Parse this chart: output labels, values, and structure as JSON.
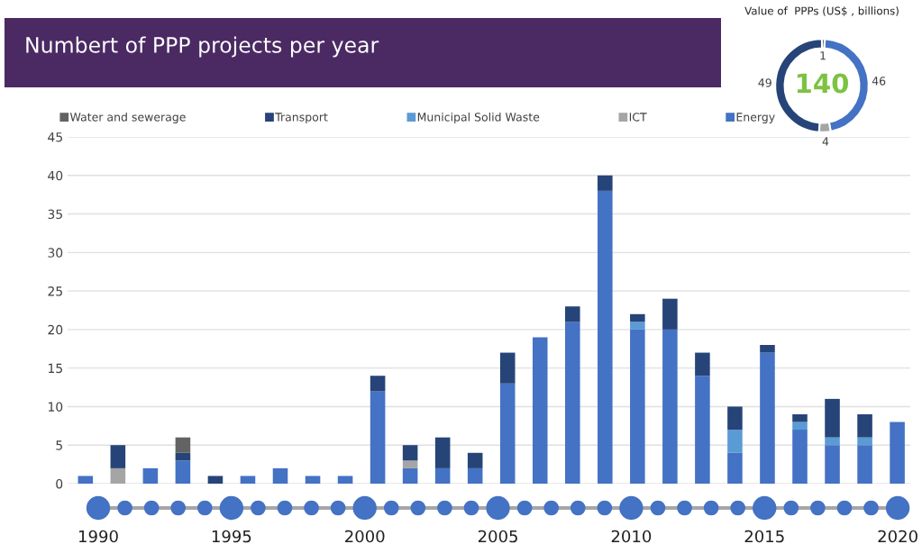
{
  "chart_data": [
    {
      "type": "bar",
      "title": "Numbert of PPP projects per year",
      "stacked": true,
      "legend": "top",
      "grid": "y",
      "categories": [
        null,
        null,
        null,
        null,
        null,
        null,
        null,
        null,
        null,
        null,
        null,
        null,
        null,
        null,
        null,
        null,
        null,
        null,
        null,
        null,
        null,
        null,
        null,
        null,
        null,
        null
      ],
      "series": [
        {
          "name": "Energy",
          "color": "#4472c4",
          "values": [
            1,
            0,
            2,
            3,
            0,
            1,
            2,
            1,
            1,
            12,
            2,
            2,
            2,
            13,
            19,
            21,
            38,
            20,
            20,
            14,
            4,
            17,
            7,
            5,
            5,
            8
          ]
        },
        {
          "name": "ICT",
          "color": "#a5a5a5",
          "values": [
            0,
            2,
            0,
            0,
            0,
            0,
            0,
            0,
            0,
            0,
            1,
            0,
            0,
            0,
            0,
            0,
            0,
            0,
            0,
            0,
            0,
            0,
            0,
            0,
            0,
            0
          ]
        },
        {
          "name": "Municipal Solid Waste",
          "color": "#5b9bd5",
          "values": [
            0,
            0,
            0,
            0,
            0,
            0,
            0,
            0,
            0,
            0,
            0,
            0,
            0,
            0,
            0,
            0,
            0,
            1,
            0,
            0,
            3,
            0,
            1,
            1,
            1,
            0
          ]
        },
        {
          "name": "Transport",
          "color": "#264478",
          "values": [
            0,
            3,
            0,
            1,
            1,
            0,
            0,
            0,
            0,
            2,
            2,
            4,
            2,
            4,
            0,
            2,
            2,
            1,
            4,
            3,
            3,
            1,
            1,
            5,
            3,
            0
          ]
        },
        {
          "name": "Water and sewerage",
          "color": "#636363",
          "values": [
            0,
            0,
            0,
            2,
            0,
            0,
            0,
            0,
            0,
            0,
            0,
            0,
            0,
            0,
            0,
            0,
            0,
            0,
            0,
            0,
            0,
            0,
            0,
            0,
            0,
            0
          ]
        }
      ],
      "ylim": [
        0,
        45
      ],
      "yticks": [
        0,
        5,
        10,
        15,
        20,
        25,
        30,
        35,
        40,
        45
      ],
      "x2lim": [
        1988.85,
        2020.47
      ],
      "x2ticks": [
        1990,
        1995,
        2000,
        2005,
        2010,
        2015,
        2020
      ]
    },
    {
      "type": "donut",
      "title": "Value of  PPPs (US$ , billions)",
      "values": [
        1,
        46,
        4,
        49
      ],
      "colors": [
        "#636363",
        "#4472c4",
        "#a5a5a5",
        "#264478"
      ],
      "data_labels": true,
      "annotations": [
        "140"
      ]
    }
  ]
}
